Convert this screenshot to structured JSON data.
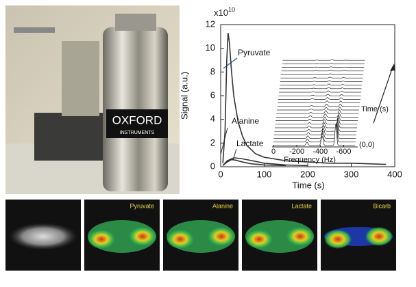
{
  "photo": {
    "logo_line1": "OXFORD",
    "logo_line2": "INSTRUMENTS"
  },
  "chart_data": {
    "type": "line",
    "xlabel": "Time (s)",
    "ylabel": "Signal (a.u.)",
    "y_exponent": {
      "base": "x10",
      "power": "10"
    },
    "xlim": [
      0,
      400
    ],
    "xticks": [
      0,
      100,
      200,
      300,
      400
    ],
    "ylim": [
      0,
      12
    ],
    "yticks": [
      0,
      2,
      4,
      6,
      8,
      10,
      12
    ],
    "series": [
      {
        "name": "Pyruvate",
        "color": "#333333",
        "x": [
          5,
          10,
          14,
          17,
          20,
          25,
          30,
          40,
          50,
          60,
          80,
          100,
          150,
          200,
          250,
          300,
          380
        ],
        "values": [
          0.3,
          3,
          9,
          11.3,
          10.5,
          8,
          6,
          3.8,
          2.6,
          1.8,
          1.1,
          0.8,
          0.5,
          0.4,
          0.3,
          0.3,
          0.2
        ]
      },
      {
        "name": "Alanine",
        "color": "#333333",
        "x": [
          5,
          15,
          25,
          35,
          50,
          70,
          100,
          150
        ],
        "values": [
          0.1,
          0.4,
          0.6,
          0.55,
          0.4,
          0.25,
          0.15,
          0.1
        ]
      },
      {
        "name": "Lactate",
        "color": "#333333",
        "x": [
          5,
          15,
          30,
          45,
          60,
          80,
          100,
          150,
          200
        ],
        "values": [
          0.1,
          0.5,
          0.75,
          0.7,
          0.6,
          0.45,
          0.3,
          0.15,
          0.1
        ]
      }
    ],
    "inset": {
      "xlabel": "Frequency (Hz)",
      "xticks": [
        0,
        -200,
        -400,
        -600
      ],
      "xlim": [
        0,
        -650
      ],
      "ylabel": "Time (s)",
      "origin_label": "(0,0)"
    }
  },
  "panel_labels": [
    "Pyruvate",
    "Alanine",
    "Lactate",
    "Bicarb"
  ]
}
